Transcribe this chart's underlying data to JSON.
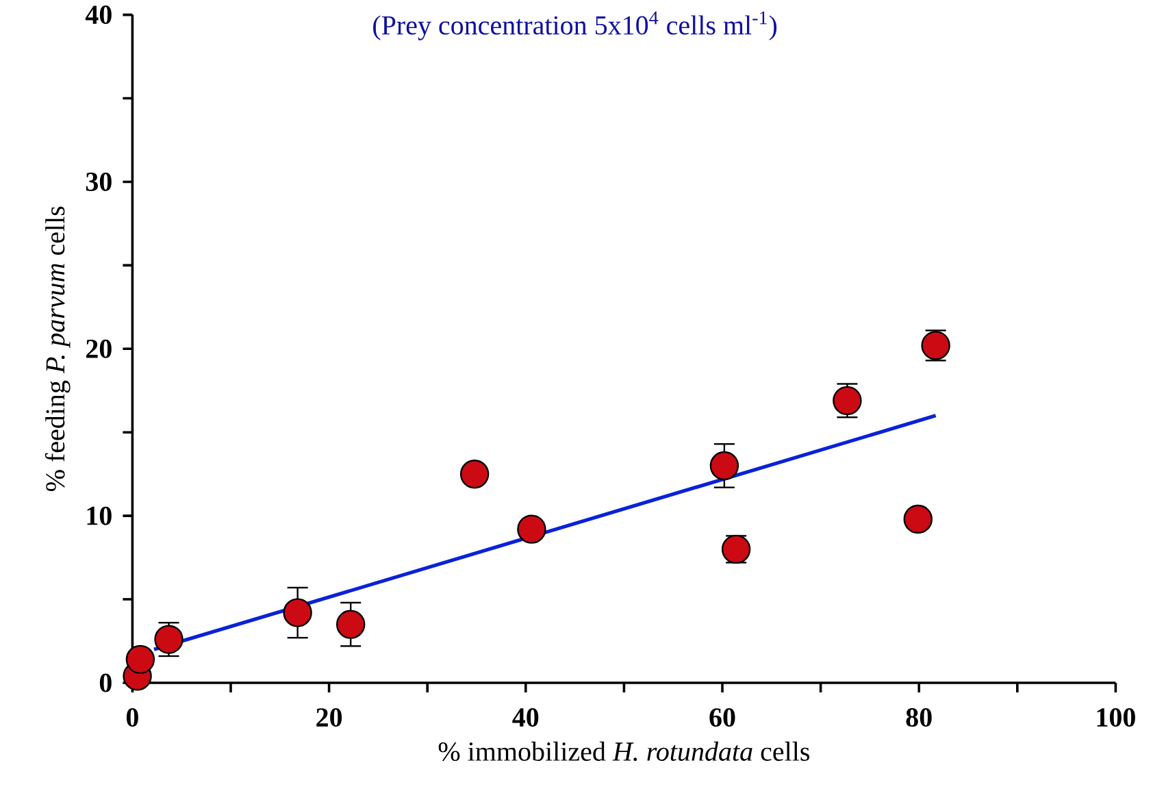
{
  "chart_data": {
    "type": "scatter",
    "title": "(Prey concentration 5x10$^{4}$ cells ml$^{-1}$)",
    "xlabel": "% immobilized *H. rotundata*  cells",
    "ylabel": "% feeding  *P. parvum* cells",
    "xlim": [
      0,
      100
    ],
    "ylim": [
      0,
      40
    ],
    "xticks": [
      0,
      {
        "value": 10,
        "label": null
      },
      20,
      {
        "value": 30,
        "label": null
      },
      40,
      {
        "value": 50,
        "label": null
      },
      60,
      {
        "value": 70,
        "label": null
      },
      80,
      {
        "value": 90,
        "label": null
      },
      100
    ],
    "yticks": [
      0,
      {
        "value": 5,
        "label": null
      },
      10,
      {
        "value": 15,
        "label": null
      },
      20,
      {
        "value": 25,
        "label": null
      },
      30,
      {
        "value": 35,
        "label": null
      },
      40
    ],
    "grid": false,
    "series": [
      {
        "marker": "circle",
        "color": "#cc0a14",
        "x": [
          0.5,
          0.8,
          3.7,
          16.8,
          22.2,
          34.8,
          40.6,
          60.2,
          61.4,
          72.7,
          79.9,
          81.7
        ],
        "values": [
          0.4,
          1.4,
          2.6,
          4.2,
          3.5,
          12.5,
          9.2,
          13.0,
          8.0,
          16.9,
          9.8,
          20.2
        ],
        "errors": [
          null,
          null,
          1.0,
          1.5,
          1.3,
          null,
          null,
          1.3,
          0.8,
          1.0,
          null,
          0.9
        ]
      },
      {
        "type": "line",
        "color": "#0a22d6",
        "x": [
          2.2,
          81.7
        ],
        "values": [
          2.0,
          16.0
        ]
      }
    ]
  }
}
